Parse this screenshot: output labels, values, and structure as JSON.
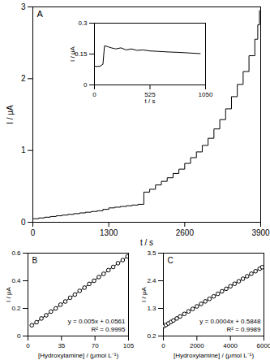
{
  "chart_data": [
    {
      "type": "line",
      "title": "A",
      "x_label": "t / s",
      "y_label": "I / μA",
      "xlim": [
        0,
        3900
      ],
      "xticks": [
        0,
        1300,
        2600,
        3900
      ],
      "ylim": [
        0,
        3
      ],
      "yticks": [
        0,
        1,
        2,
        3
      ],
      "line_style": "step",
      "color": "#000000",
      "x": [
        0,
        100,
        200,
        300,
        400,
        500,
        600,
        700,
        800,
        900,
        1000,
        1100,
        1200,
        1300,
        1400,
        1500,
        1600,
        1700,
        1800,
        1900,
        2000,
        2100,
        2200,
        2300,
        2400,
        2500,
        2600,
        2700,
        2800,
        2900,
        3000,
        3100,
        3200,
        3300,
        3400,
        3500,
        3600,
        3700,
        3800,
        3850,
        3880
      ],
      "values": [
        0.05,
        0.06,
        0.07,
        0.08,
        0.09,
        0.1,
        0.11,
        0.12,
        0.13,
        0.14,
        0.15,
        0.16,
        0.18,
        0.2,
        0.21,
        0.22,
        0.23,
        0.24,
        0.25,
        0.42,
        0.46,
        0.52,
        0.57,
        0.62,
        0.68,
        0.74,
        0.82,
        0.9,
        0.98,
        1.07,
        1.17,
        1.3,
        1.43,
        1.58,
        1.75,
        1.92,
        2.1,
        2.32,
        2.55,
        2.75,
        2.95
      ]
    },
    {
      "type": "line",
      "x_label": "t / s",
      "y_label": "I / μA",
      "xlim": [
        0,
        1050
      ],
      "xticks": [
        0,
        525,
        1050
      ],
      "ylim": [
        0,
        0.3
      ],
      "yticks": [
        0,
        0.15,
        0.3
      ],
      "color": "#000000",
      "x": [
        0,
        50,
        80,
        95,
        130,
        160,
        200,
        250,
        300,
        350,
        400,
        460,
        525,
        600,
        700,
        800,
        900,
        1000
      ],
      "values": [
        0.09,
        0.09,
        0.1,
        0.19,
        0.185,
        0.18,
        0.175,
        0.18,
        0.17,
        0.175,
        0.168,
        0.17,
        0.165,
        0.163,
        0.16,
        0.158,
        0.155,
        0.152
      ]
    },
    {
      "type": "scatter",
      "title": "B",
      "x_label": "[Hydroxylamine] / (μmol L⁻¹)",
      "y_label": "I / μA",
      "xlim": [
        0,
        105
      ],
      "xticks": [
        0,
        35,
        70,
        105
      ],
      "ylim": [
        0,
        0.6
      ],
      "yticks": [
        0,
        0.2,
        0.4,
        0.6
      ],
      "annotations": [
        "y = 0.005x + 0.0561",
        "R² = 0.9995"
      ],
      "series": [
        {
          "type": "scatter",
          "marker": "circle",
          "color": "#000000",
          "x": [
            4,
            9,
            14,
            19,
            24,
            29,
            34,
            39,
            44,
            49,
            54,
            59,
            64,
            69,
            74,
            79,
            84,
            89,
            94,
            99,
            104
          ],
          "values": [
            0.078,
            0.1,
            0.127,
            0.15,
            0.177,
            0.2,
            0.227,
            0.25,
            0.277,
            0.3,
            0.327,
            0.35,
            0.377,
            0.4,
            0.427,
            0.45,
            0.477,
            0.5,
            0.527,
            0.55,
            0.576
          ]
        },
        {
          "type": "line",
          "color": "#000000",
          "x": [
            4,
            104
          ],
          "values": [
            0.0761,
            0.5761
          ]
        }
      ]
    },
    {
      "type": "scatter",
      "title": "C",
      "x_label": "[Hydroxylamine] / (μmol L⁻¹)",
      "y_label": "I / μA",
      "xlim": [
        0,
        6000
      ],
      "xticks": [
        0,
        2000,
        4000,
        6000
      ],
      "ylim": [
        0.2,
        3.5
      ],
      "yticks": [
        0.2,
        1.3,
        2.4,
        3.5
      ],
      "annotations": [
        "y = 0.0004x + 0.5848",
        "R² = 0.9989"
      ],
      "series": [
        {
          "type": "scatter",
          "marker": "circle",
          "color": "#000000",
          "x": [
            50,
            150,
            300,
            450,
            600,
            800,
            1000,
            1250,
            1500,
            1750,
            2000,
            2250,
            2500,
            2750,
            3000,
            3250,
            3500,
            3750,
            4000,
            4250,
            4500,
            4750,
            5000,
            5250,
            5500,
            5750,
            5900
          ],
          "values": [
            0.6,
            0.64,
            0.7,
            0.76,
            0.82,
            0.9,
            0.98,
            1.08,
            1.18,
            1.28,
            1.38,
            1.48,
            1.58,
            1.68,
            1.78,
            1.88,
            1.98,
            2.08,
            2.18,
            2.28,
            2.38,
            2.48,
            2.58,
            2.68,
            2.78,
            2.88,
            2.94
          ]
        },
        {
          "type": "line",
          "color": "#000000",
          "x": [
            50,
            5900
          ],
          "values": [
            0.6048,
            2.9448
          ]
        }
      ]
    }
  ]
}
